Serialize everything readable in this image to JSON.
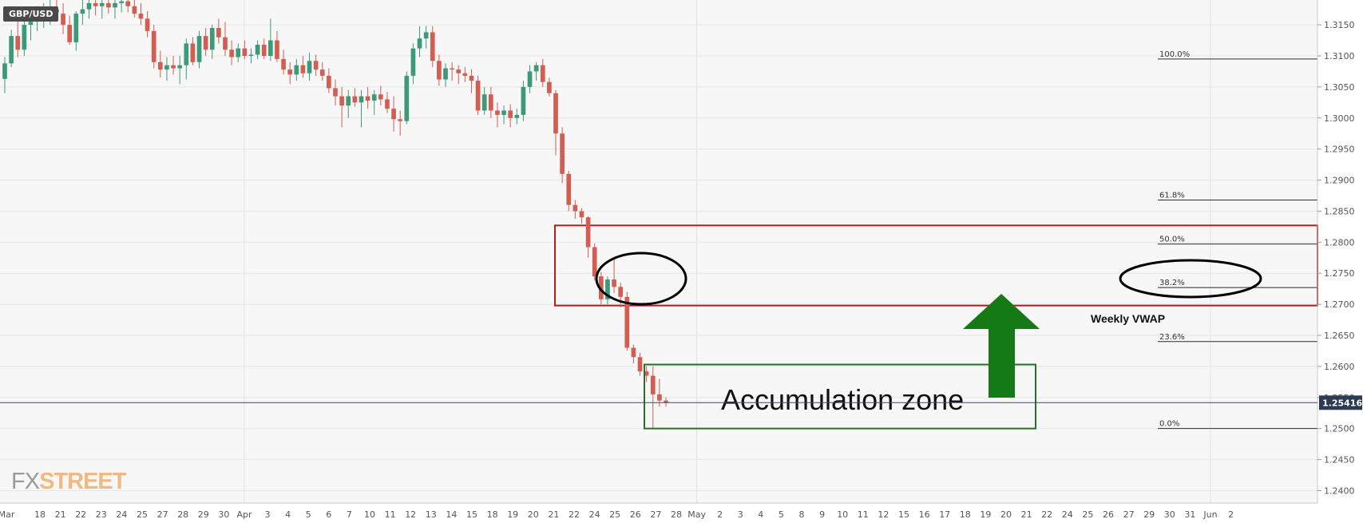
{
  "symbol": "GBP/USD",
  "logo": {
    "part1": "FX",
    "part2": "STREET"
  },
  "colors": {
    "bull": "#3d9a78",
    "bear": "#d45d52",
    "red_zone": "#b71c1c",
    "green_zone": "#2e6b2e",
    "arrow": "#157a15"
  },
  "chart_data": {
    "type": "candlestick",
    "y_axis": {
      "min": 1.238,
      "max": 1.319,
      "ticks": [
        "1.2400",
        "1.2450",
        "1.2500",
        "1.2550",
        "1.2600",
        "1.2650",
        "1.2700",
        "1.2750",
        "1.2800",
        "1.2850",
        "1.2900",
        "1.2950",
        "1.3000",
        "1.3050",
        "1.3100",
        "1.3150"
      ]
    },
    "x_labels": [
      "Mar",
      "18",
      "21",
      "22",
      "23",
      "24",
      "25",
      "27",
      "28",
      "29",
      "30",
      "Apr",
      "3",
      "4",
      "5",
      "6",
      "7",
      "10",
      "11",
      "12",
      "13",
      "14",
      "15",
      "18",
      "19",
      "20",
      "21",
      "22",
      "24",
      "25",
      "26",
      "27",
      "28",
      "May",
      "2",
      "3",
      "4",
      "5",
      "8",
      "9",
      "10",
      "11",
      "12",
      "15",
      "16",
      "17",
      "18",
      "19",
      "20",
      "21",
      "22",
      "24",
      "25",
      "26",
      "27",
      "29",
      "30",
      "31",
      "Jun",
      "2"
    ],
    "current_price": "1.25416",
    "fib_levels": [
      {
        "label": "100.0%",
        "value": 1.3095
      },
      {
        "label": "61.8%",
        "value": 1.2868
      },
      {
        "label": "50.0%",
        "value": 1.2797
      },
      {
        "label": "38.2%",
        "value": 1.2727
      },
      {
        "label": "23.6%",
        "value": 1.264
      },
      {
        "label": "0.0%",
        "value": 1.25
      }
    ],
    "annotations": {
      "accumulation": "Accumulation zone",
      "vwap": "Weekly VWAP"
    },
    "candles": [
      {
        "o": 1.3063,
        "h": 1.3098,
        "l": 1.304,
        "c": 1.3088
      },
      {
        "o": 1.3088,
        "h": 1.3142,
        "l": 1.3082,
        "c": 1.3132
      },
      {
        "o": 1.3132,
        "h": 1.3162,
        "l": 1.3098,
        "c": 1.311
      },
      {
        "o": 1.311,
        "h": 1.316,
        "l": 1.31,
        "c": 1.315
      },
      {
        "o": 1.315,
        "h": 1.3175,
        "l": 1.3125,
        "c": 1.3155
      },
      {
        "o": 1.3155,
        "h": 1.318,
        "l": 1.314,
        "c": 1.3165
      },
      {
        "o": 1.3165,
        "h": 1.3185,
        "l": 1.3145,
        "c": 1.317
      },
      {
        "o": 1.317,
        "h": 1.319,
        "l": 1.315,
        "c": 1.3175
      },
      {
        "o": 1.3175,
        "h": 1.319,
        "l": 1.3155,
        "c": 1.317
      },
      {
        "o": 1.3168,
        "h": 1.3185,
        "l": 1.3135,
        "c": 1.315
      },
      {
        "o": 1.315,
        "h": 1.3165,
        "l": 1.3118,
        "c": 1.3122
      },
      {
        "o": 1.3122,
        "h": 1.3172,
        "l": 1.3108,
        "c": 1.3168
      },
      {
        "o": 1.3168,
        "h": 1.319,
        "l": 1.315,
        "c": 1.3175
      },
      {
        "o": 1.3175,
        "h": 1.319,
        "l": 1.316,
        "c": 1.3185
      },
      {
        "o": 1.3185,
        "h": 1.3195,
        "l": 1.3165,
        "c": 1.318
      },
      {
        "o": 1.318,
        "h": 1.3195,
        "l": 1.316,
        "c": 1.3185
      },
      {
        "o": 1.3185,
        "h": 1.3198,
        "l": 1.3168,
        "c": 1.3178
      },
      {
        "o": 1.3178,
        "h": 1.3195,
        "l": 1.316,
        "c": 1.3185
      },
      {
        "o": 1.3185,
        "h": 1.3195,
        "l": 1.317,
        "c": 1.3188
      },
      {
        "o": 1.3188,
        "h": 1.3198,
        "l": 1.317,
        "c": 1.318
      },
      {
        "o": 1.318,
        "h": 1.319,
        "l": 1.3162,
        "c": 1.3168
      },
      {
        "o": 1.3168,
        "h": 1.3185,
        "l": 1.315,
        "c": 1.316
      },
      {
        "o": 1.316,
        "h": 1.3172,
        "l": 1.313,
        "c": 1.314
      },
      {
        "o": 1.314,
        "h": 1.315,
        "l": 1.308,
        "c": 1.309
      },
      {
        "o": 1.309,
        "h": 1.3108,
        "l": 1.3065,
        "c": 1.3078
      },
      {
        "o": 1.3078,
        "h": 1.3098,
        "l": 1.306,
        "c": 1.3085
      },
      {
        "o": 1.3085,
        "h": 1.31,
        "l": 1.307,
        "c": 1.308
      },
      {
        "o": 1.308,
        "h": 1.31,
        "l": 1.3055,
        "c": 1.3085
      },
      {
        "o": 1.3085,
        "h": 1.3128,
        "l": 1.3062,
        "c": 1.312
      },
      {
        "o": 1.312,
        "h": 1.313,
        "l": 1.3085,
        "c": 1.309
      },
      {
        "o": 1.309,
        "h": 1.314,
        "l": 1.308,
        "c": 1.3132
      },
      {
        "o": 1.3132,
        "h": 1.3145,
        "l": 1.31,
        "c": 1.311
      },
      {
        "o": 1.311,
        "h": 1.315,
        "l": 1.3095,
        "c": 1.3145
      },
      {
        "o": 1.3145,
        "h": 1.316,
        "l": 1.312,
        "c": 1.313
      },
      {
        "o": 1.313,
        "h": 1.3155,
        "l": 1.31,
        "c": 1.311
      },
      {
        "o": 1.311,
        "h": 1.3125,
        "l": 1.3085,
        "c": 1.3098
      },
      {
        "o": 1.3098,
        "h": 1.312,
        "l": 1.309,
        "c": 1.3112
      },
      {
        "o": 1.3112,
        "h": 1.3125,
        "l": 1.3095,
        "c": 1.31
      },
      {
        "o": 1.31,
        "h": 1.3112,
        "l": 1.3088,
        "c": 1.3102
      },
      {
        "o": 1.3102,
        "h": 1.3125,
        "l": 1.3095,
        "c": 1.3118
      },
      {
        "o": 1.3118,
        "h": 1.3128,
        "l": 1.3095,
        "c": 1.31
      },
      {
        "o": 1.31,
        "h": 1.316,
        "l": 1.3092,
        "c": 1.3125
      },
      {
        "o": 1.3125,
        "h": 1.314,
        "l": 1.309,
        "c": 1.3095
      },
      {
        "o": 1.3095,
        "h": 1.311,
        "l": 1.307,
        "c": 1.3078
      },
      {
        "o": 1.3078,
        "h": 1.309,
        "l": 1.3055,
        "c": 1.307
      },
      {
        "o": 1.307,
        "h": 1.3095,
        "l": 1.306,
        "c": 1.3085
      },
      {
        "o": 1.3085,
        "h": 1.31,
        "l": 1.3065,
        "c": 1.3072
      },
      {
        "o": 1.3072,
        "h": 1.3105,
        "l": 1.306,
        "c": 1.3092
      },
      {
        "o": 1.3092,
        "h": 1.3102,
        "l": 1.3068,
        "c": 1.3078
      },
      {
        "o": 1.3078,
        "h": 1.309,
        "l": 1.306,
        "c": 1.3068
      },
      {
        "o": 1.3068,
        "h": 1.308,
        "l": 1.304,
        "c": 1.3048
      },
      {
        "o": 1.3048,
        "h": 1.3062,
        "l": 1.302,
        "c": 1.3035
      },
      {
        "o": 1.3035,
        "h": 1.305,
        "l": 1.2985,
        "c": 1.302
      },
      {
        "o": 1.302,
        "h": 1.3045,
        "l": 1.3,
        "c": 1.3035
      },
      {
        "o": 1.3035,
        "h": 1.3048,
        "l": 1.3018,
        "c": 1.3025
      },
      {
        "o": 1.3025,
        "h": 1.3045,
        "l": 1.2985,
        "c": 1.3035
      },
      {
        "o": 1.3035,
        "h": 1.305,
        "l": 1.3015,
        "c": 1.3028
      },
      {
        "o": 1.3028,
        "h": 1.3045,
        "l": 1.3005,
        "c": 1.3038
      },
      {
        "o": 1.3038,
        "h": 1.3052,
        "l": 1.302,
        "c": 1.303
      },
      {
        "o": 1.303,
        "h": 1.3042,
        "l": 1.3008,
        "c": 1.3015
      },
      {
        "o": 1.3015,
        "h": 1.3035,
        "l": 1.2978,
        "c": 1.2998
      },
      {
        "o": 1.2998,
        "h": 1.3012,
        "l": 1.2972,
        "c": 1.2995
      },
      {
        "o": 1.2995,
        "h": 1.3075,
        "l": 1.299,
        "c": 1.3068
      },
      {
        "o": 1.3068,
        "h": 1.312,
        "l": 1.3055,
        "c": 1.3112
      },
      {
        "o": 1.3112,
        "h": 1.3148,
        "l": 1.3098,
        "c": 1.3128
      },
      {
        "o": 1.3128,
        "h": 1.3148,
        "l": 1.3112,
        "c": 1.3138
      },
      {
        "o": 1.3138,
        "h": 1.3148,
        "l": 1.3082,
        "c": 1.3092
      },
      {
        "o": 1.3092,
        "h": 1.3102,
        "l": 1.3052,
        "c": 1.3062
      },
      {
        "o": 1.3062,
        "h": 1.3088,
        "l": 1.305,
        "c": 1.308
      },
      {
        "o": 1.308,
        "h": 1.309,
        "l": 1.306,
        "c": 1.3078
      },
      {
        "o": 1.3078,
        "h": 1.3085,
        "l": 1.3055,
        "c": 1.3072
      },
      {
        "o": 1.3072,
        "h": 1.3082,
        "l": 1.3058,
        "c": 1.3068
      },
      {
        "o": 1.3068,
        "h": 1.3078,
        "l": 1.304,
        "c": 1.306
      },
      {
        "o": 1.306,
        "h": 1.3068,
        "l": 1.3005,
        "c": 1.3012
      },
      {
        "o": 1.3012,
        "h": 1.305,
        "l": 1.3005,
        "c": 1.3038
      },
      {
        "o": 1.3038,
        "h": 1.305,
        "l": 1.3,
        "c": 1.3012
      },
      {
        "o": 1.3012,
        "h": 1.3025,
        "l": 1.2985,
        "c": 1.3005
      },
      {
        "o": 1.3005,
        "h": 1.302,
        "l": 1.299,
        "c": 1.3012
      },
      {
        "o": 1.3012,
        "h": 1.3022,
        "l": 1.2985,
        "c": 1.3
      },
      {
        "o": 1.3,
        "h": 1.3015,
        "l": 1.299,
        "c": 1.3005
      },
      {
        "o": 1.3005,
        "h": 1.306,
        "l": 1.2995,
        "c": 1.305
      },
      {
        "o": 1.305,
        "h": 1.3085,
        "l": 1.304,
        "c": 1.3075
      },
      {
        "o": 1.3075,
        "h": 1.309,
        "l": 1.306,
        "c": 1.3085
      },
      {
        "o": 1.3085,
        "h": 1.3095,
        "l": 1.305,
        "c": 1.3058
      },
      {
        "o": 1.3058,
        "h": 1.3065,
        "l": 1.3035,
        "c": 1.304
      },
      {
        "o": 1.304,
        "h": 1.3045,
        "l": 1.294,
        "c": 1.2975
      },
      {
        "o": 1.2975,
        "h": 1.2985,
        "l": 1.2895,
        "c": 1.291
      },
      {
        "o": 1.291,
        "h": 1.2915,
        "l": 1.285,
        "c": 1.286
      },
      {
        "o": 1.286,
        "h": 1.2868,
        "l": 1.2838,
        "c": 1.285
      },
      {
        "o": 1.285,
        "h": 1.2855,
        "l": 1.283,
        "c": 1.284
      },
      {
        "o": 1.284,
        "h": 1.2842,
        "l": 1.2775,
        "c": 1.2792
      },
      {
        "o": 1.2792,
        "h": 1.2798,
        "l": 1.2738,
        "c": 1.2745
      },
      {
        "o": 1.2745,
        "h": 1.2752,
        "l": 1.27,
        "c": 1.2708
      },
      {
        "o": 1.2708,
        "h": 1.2745,
        "l": 1.27,
        "c": 1.274
      },
      {
        "o": 1.274,
        "h": 1.2772,
        "l": 1.2718,
        "c": 1.2728
      },
      {
        "o": 1.2728,
        "h": 1.2735,
        "l": 1.2695,
        "c": 1.2712
      },
      {
        "o": 1.2712,
        "h": 1.272,
        "l": 1.2625,
        "c": 1.263
      },
      {
        "o": 1.263,
        "h": 1.2635,
        "l": 1.2605,
        "c": 1.2615
      },
      {
        "o": 1.2615,
        "h": 1.2622,
        "l": 1.2585,
        "c": 1.2592
      },
      {
        "o": 1.2592,
        "h": 1.26,
        "l": 1.2575,
        "c": 1.2585
      },
      {
        "o": 1.2585,
        "h": 1.26,
        "l": 1.25,
        "c": 1.2555
      },
      {
        "o": 1.2555,
        "h": 1.258,
        "l": 1.2535,
        "c": 1.2545
      },
      {
        "o": 1.2545,
        "h": 1.255,
        "l": 1.2535,
        "c": 1.2542
      }
    ]
  }
}
